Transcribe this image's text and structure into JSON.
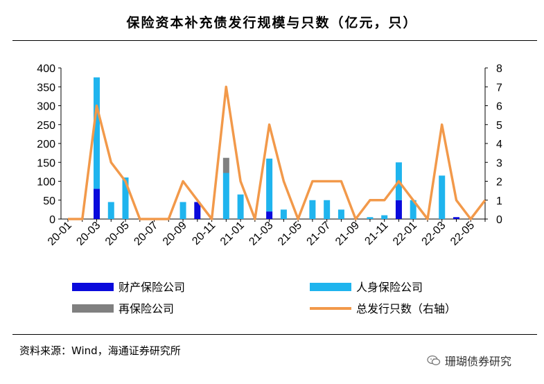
{
  "title": "保险资本补充债发行规模与只数（亿元，只）",
  "source": "资料来源：Wind，海通证券研究所",
  "watermark": "珊瑚债券研究",
  "chart_data": {
    "type": "bar",
    "categories": [
      "20-01",
      "20-02",
      "20-03",
      "20-04",
      "20-05",
      "20-06",
      "20-07",
      "20-08",
      "20-09",
      "20-10",
      "20-11",
      "20-12",
      "21-01",
      "21-02",
      "21-03",
      "21-04",
      "21-05",
      "21-06",
      "21-07",
      "21-08",
      "21-09",
      "21-10",
      "21-11",
      "21-12",
      "22-01",
      "22-02",
      "22-03",
      "22-04",
      "22-05",
      "22-06"
    ],
    "x_tick_labels": [
      "20-01",
      "",
      "20-03",
      "",
      "20-05",
      "",
      "20-07",
      "",
      "20-09",
      "",
      "20-11",
      "",
      "21-01",
      "",
      "21-03",
      "",
      "21-05",
      "",
      "21-07",
      "",
      "21-09",
      "",
      "21-11",
      "",
      "22-01",
      "",
      "22-03",
      "",
      "22-05",
      ""
    ],
    "series": [
      {
        "name": "财产保险公司",
        "kind": "stacked-bar",
        "axis": "left",
        "color": "#0a0adc",
        "values": [
          0,
          0,
          80,
          0,
          0,
          0,
          0,
          0,
          0,
          45,
          0,
          0,
          0,
          0,
          20,
          0,
          0,
          0,
          0,
          0,
          0,
          0,
          0,
          50,
          0,
          0,
          0,
          5,
          0,
          0
        ]
      },
      {
        "name": "人身保险公司",
        "kind": "stacked-bar",
        "axis": "left",
        "color": "#1fb4ee",
        "values": [
          0,
          0,
          295,
          45,
          110,
          0,
          0,
          0,
          45,
          0,
          0,
          122,
          65,
          0,
          140,
          25,
          0,
          50,
          50,
          25,
          0,
          5,
          10,
          100,
          50,
          0,
          115,
          0,
          0,
          0
        ]
      },
      {
        "name": "再保险公司",
        "kind": "stacked-bar",
        "axis": "left",
        "color": "#808080",
        "values": [
          0,
          0,
          0,
          0,
          0,
          0,
          0,
          0,
          0,
          0,
          0,
          40,
          0,
          0,
          0,
          0,
          0,
          0,
          0,
          0,
          0,
          0,
          0,
          0,
          0,
          0,
          0,
          0,
          0,
          0
        ]
      },
      {
        "name": "总发行只数（右轴）",
        "kind": "line",
        "axis": "right",
        "color": "#f2994a",
        "values": [
          0,
          0,
          6,
          3,
          2,
          0,
          0,
          0,
          2,
          1,
          0,
          7,
          2,
          0,
          5,
          2,
          0,
          2,
          2,
          2,
          0,
          1,
          1,
          2,
          1,
          0,
          5,
          1,
          0,
          1
        ]
      }
    ],
    "yleft": {
      "min": 0,
      "max": 400,
      "ticks": [
        0,
        50,
        100,
        150,
        200,
        250,
        300,
        350,
        400
      ]
    },
    "yright": {
      "min": 0,
      "max": 8,
      "ticks": [
        0,
        1,
        2,
        3,
        4,
        5,
        6,
        7,
        8
      ]
    },
    "legend_position": "bottom",
    "grid": false
  }
}
